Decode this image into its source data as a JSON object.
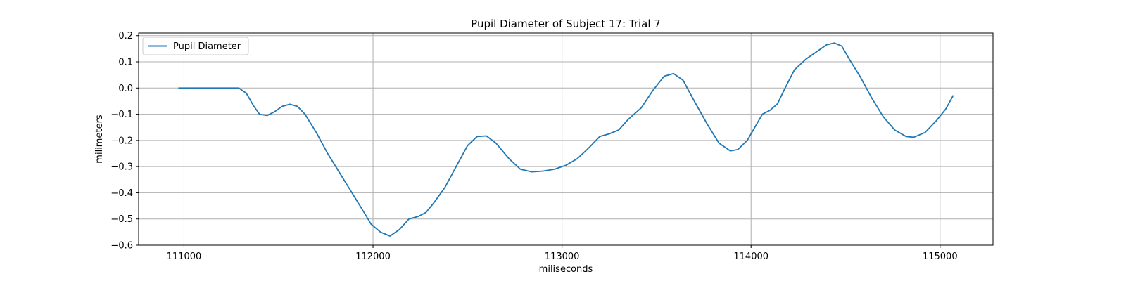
{
  "chart_data": {
    "type": "line",
    "title": "Pupil Diameter of Subject 17: Trial 7",
    "xlabel": "miliseconds",
    "ylabel": "milimeters",
    "xlim": [
      110760,
      115280
    ],
    "ylim": [
      -0.6,
      0.21
    ],
    "xticks": [
      111000,
      112000,
      113000,
      114000,
      115000
    ],
    "xtick_labels": [
      "111000",
      "112000",
      "113000",
      "114000",
      "115000"
    ],
    "yticks": [
      -0.6,
      -0.5,
      -0.4,
      -0.3,
      -0.2,
      -0.1,
      0.0,
      0.1,
      0.2
    ],
    "ytick_labels": [
      "−0.6",
      "−0.5",
      "−0.4",
      "−0.3",
      "−0.2",
      "−0.1",
      "0.0",
      "0.1",
      "0.2"
    ],
    "grid": true,
    "legend_position": "top-left",
    "series": [
      {
        "name": "Pupil Diameter",
        "color": "#1f77b4",
        "points": [
          [
            110970,
            0.0
          ],
          [
            111100,
            0.0
          ],
          [
            111200,
            0.0
          ],
          [
            111290,
            0.0
          ],
          [
            111330,
            -0.02
          ],
          [
            111370,
            -0.07
          ],
          [
            111400,
            -0.1
          ],
          [
            111440,
            -0.105
          ],
          [
            111480,
            -0.09
          ],
          [
            111520,
            -0.07
          ],
          [
            111560,
            -0.062
          ],
          [
            111600,
            -0.07
          ],
          [
            111640,
            -0.1
          ],
          [
            111700,
            -0.17
          ],
          [
            111760,
            -0.25
          ],
          [
            111820,
            -0.32
          ],
          [
            111880,
            -0.39
          ],
          [
            111940,
            -0.46
          ],
          [
            111990,
            -0.52
          ],
          [
            112040,
            -0.55
          ],
          [
            112090,
            -0.565
          ],
          [
            112140,
            -0.54
          ],
          [
            112190,
            -0.5
          ],
          [
            112240,
            -0.49
          ],
          [
            112280,
            -0.475
          ],
          [
            112320,
            -0.44
          ],
          [
            112380,
            -0.38
          ],
          [
            112440,
            -0.3
          ],
          [
            112500,
            -0.22
          ],
          [
            112550,
            -0.185
          ],
          [
            112600,
            -0.183
          ],
          [
            112650,
            -0.21
          ],
          [
            112720,
            -0.27
          ],
          [
            112780,
            -0.31
          ],
          [
            112840,
            -0.32
          ],
          [
            112900,
            -0.317
          ],
          [
            112960,
            -0.31
          ],
          [
            113020,
            -0.295
          ],
          [
            113080,
            -0.27
          ],
          [
            113140,
            -0.23
          ],
          [
            113200,
            -0.185
          ],
          [
            113250,
            -0.175
          ],
          [
            113300,
            -0.16
          ],
          [
            113350,
            -0.12
          ],
          [
            113420,
            -0.075
          ],
          [
            113480,
            -0.01
          ],
          [
            113540,
            0.045
          ],
          [
            113590,
            0.055
          ],
          [
            113640,
            0.03
          ],
          [
            113700,
            -0.05
          ],
          [
            113770,
            -0.14
          ],
          [
            113830,
            -0.21
          ],
          [
            113890,
            -0.24
          ],
          [
            113930,
            -0.235
          ],
          [
            113980,
            -0.2
          ],
          [
            114020,
            -0.15
          ],
          [
            114060,
            -0.1
          ],
          [
            114100,
            -0.085
          ],
          [
            114140,
            -0.06
          ],
          [
            114180,
            0.0
          ],
          [
            114230,
            0.07
          ],
          [
            114290,
            0.11
          ],
          [
            114350,
            0.14
          ],
          [
            114400,
            0.165
          ],
          [
            114440,
            0.172
          ],
          [
            114480,
            0.16
          ],
          [
            114520,
            0.11
          ],
          [
            114580,
            0.04
          ],
          [
            114640,
            -0.04
          ],
          [
            114700,
            -0.11
          ],
          [
            114760,
            -0.16
          ],
          [
            114820,
            -0.185
          ],
          [
            114860,
            -0.188
          ],
          [
            114920,
            -0.17
          ],
          [
            114980,
            -0.125
          ],
          [
            115030,
            -0.08
          ],
          [
            115070,
            -0.028
          ]
        ]
      }
    ]
  }
}
